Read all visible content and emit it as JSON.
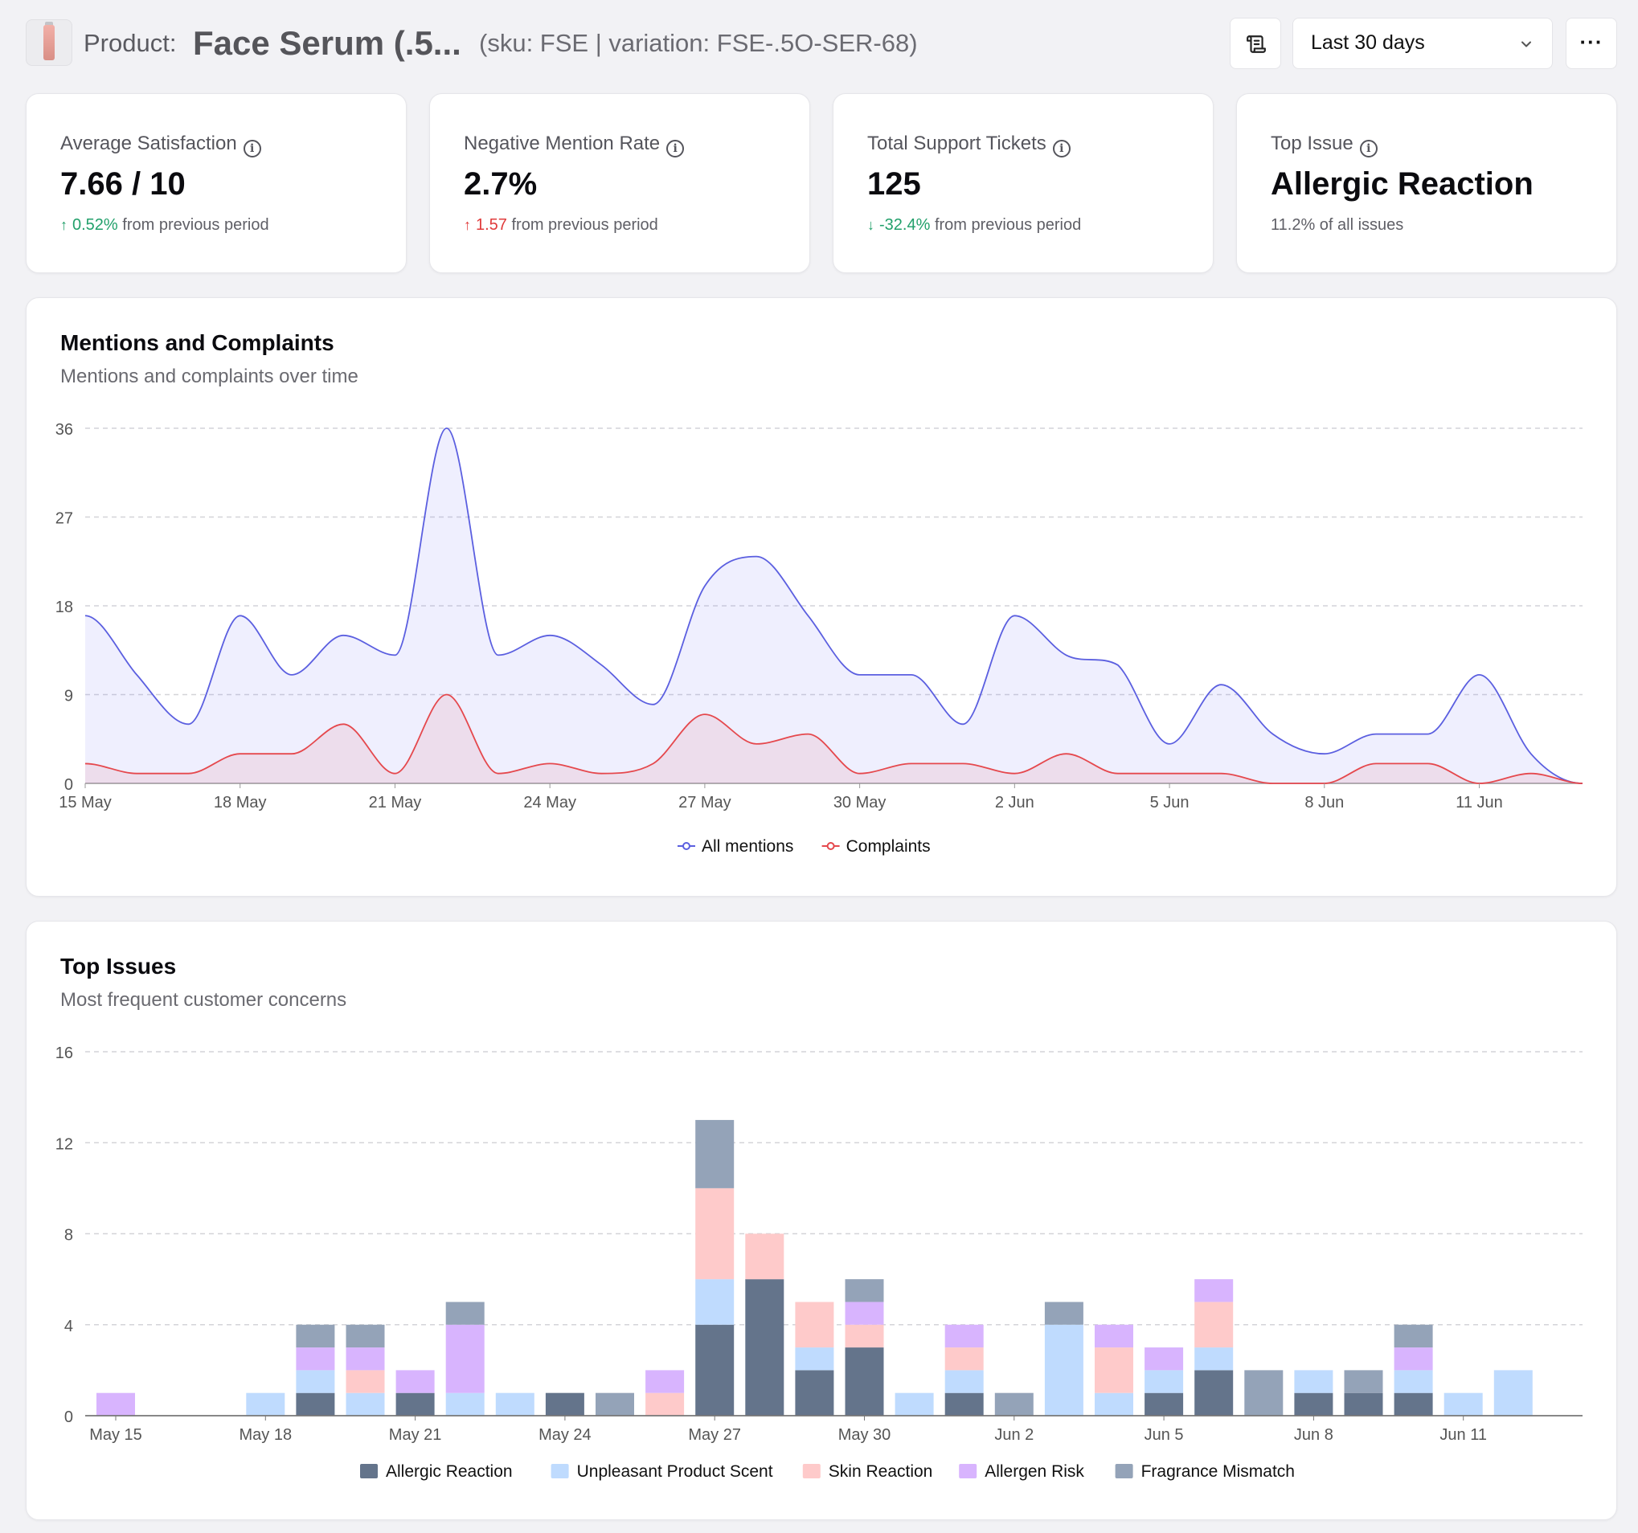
{
  "header": {
    "prefix": "Product:",
    "title": "Face Serum (.5...",
    "meta": "(sku: FSE | variation: FSE-.5O-SER-68)",
    "range_label": "Last 30 days",
    "more_label": "···"
  },
  "kpis": [
    {
      "label": "Average Satisfaction",
      "value": "7.66 / 10",
      "delta": "0.52%",
      "delta_dir": "up",
      "delta_tone": "good",
      "suffix": "from previous period"
    },
    {
      "label": "Negative Mention Rate",
      "value": "2.7%",
      "delta": "1.57",
      "delta_dir": "up",
      "delta_tone": "bad",
      "suffix": "from previous period"
    },
    {
      "label": "Total Support Tickets",
      "value": "125",
      "delta": "-32.4%",
      "delta_dir": "down",
      "delta_tone": "good",
      "suffix": "from previous period"
    },
    {
      "label": "Top Issue",
      "value": "Allergic Reaction",
      "note": "11.2% of all issues"
    }
  ],
  "mentions_panel": {
    "title": "Mentions and Complaints",
    "subtitle": "Mentions and complaints over time"
  },
  "issues_panel": {
    "title": "Top Issues",
    "subtitle": "Most frequent customer concerns"
  },
  "colors": {
    "mentions": "#5b5fe0",
    "complaints": "#e5484d",
    "allergic": "#64748b",
    "scent": "#bfdbfe",
    "skin": "#fecaca",
    "allergen": "#d8b4fe",
    "fragrance": "#94a3b8"
  },
  "chart_data": [
    {
      "type": "area",
      "title": "Mentions and Complaints",
      "x": [
        "15 May",
        "16 May",
        "17 May",
        "18 May",
        "19 May",
        "20 May",
        "21 May",
        "22 May",
        "23 May",
        "24 May",
        "25 May",
        "26 May",
        "27 May",
        "28 May",
        "29 May",
        "30 May",
        "31 May",
        "1 Jun",
        "2 Jun",
        "3 Jun",
        "4 Jun",
        "5 Jun",
        "6 Jun",
        "7 Jun",
        "8 Jun",
        "9 Jun",
        "10 Jun",
        "11 Jun",
        "12 Jun",
        "13 Jun"
      ],
      "tick_labels": [
        "15 May",
        "18 May",
        "21 May",
        "24 May",
        "27 May",
        "30 May",
        "2 Jun",
        "5 Jun",
        "8 Jun",
        "11 Jun"
      ],
      "tick_every": 3,
      "series": [
        {
          "name": "All mentions",
          "values": [
            17,
            11,
            6,
            17,
            11,
            15,
            13,
            36,
            13,
            15,
            12,
            8,
            20,
            23,
            17,
            11,
            11,
            6,
            17,
            13,
            12,
            4,
            10,
            5,
            3,
            5,
            5,
            11,
            3,
            0
          ]
        },
        {
          "name": "Complaints",
          "values": [
            2,
            1,
            1,
            3,
            3,
            6,
            1,
            9,
            1,
            2,
            1,
            2,
            7,
            4,
            5,
            1,
            2,
            2,
            1,
            3,
            1,
            1,
            1,
            0,
            0,
            2,
            2,
            0,
            1,
            0
          ]
        }
      ],
      "ylim": [
        0,
        36
      ],
      "yticks": [
        0,
        9,
        18,
        27,
        36
      ],
      "legend": "bottom-center"
    },
    {
      "type": "bar",
      "stacked": true,
      "title": "Top Issues",
      "categories": [
        "May 15",
        "May 16",
        "May 17",
        "May 18",
        "May 19",
        "May 20",
        "May 21",
        "May 22",
        "May 23",
        "May 24",
        "May 25",
        "May 26",
        "May 27",
        "May 28",
        "May 29",
        "May 30",
        "May 31",
        "Jun 1",
        "Jun 2",
        "Jun 3",
        "Jun 4",
        "Jun 5",
        "Jun 6",
        "Jun 7",
        "Jun 8",
        "Jun 9",
        "Jun 10",
        "Jun 11",
        "Jun 12"
      ],
      "tick_labels": [
        "May 15",
        "May 18",
        "May 21",
        "May 24",
        "May 27",
        "May 30",
        "Jun 2",
        "Jun 5",
        "Jun 8",
        "Jun 11"
      ],
      "tick_every": 3,
      "series": [
        {
          "name": "Allergic Reaction",
          "values": [
            0,
            0,
            0,
            0,
            1,
            0,
            1,
            0,
            0,
            1,
            0,
            0,
            4,
            6,
            2,
            3,
            0,
            1,
            0,
            0,
            0,
            1,
            2,
            0,
            1,
            1,
            1,
            0,
            0
          ]
        },
        {
          "name": "Unpleasant Product Scent",
          "values": [
            0,
            0,
            0,
            1,
            1,
            1,
            0,
            1,
            1,
            0,
            0,
            0,
            2,
            0,
            1,
            0,
            1,
            1,
            0,
            4,
            1,
            1,
            1,
            0,
            1,
            0,
            1,
            1,
            2
          ]
        },
        {
          "name": "Skin Reaction",
          "values": [
            0,
            0,
            0,
            0,
            0,
            1,
            0,
            0,
            0,
            0,
            0,
            1,
            4,
            2,
            2,
            1,
            0,
            1,
            0,
            0,
            2,
            0,
            2,
            0,
            0,
            0,
            0,
            0,
            0
          ]
        },
        {
          "name": "Allergen Risk",
          "values": [
            1,
            0,
            0,
            0,
            1,
            1,
            1,
            3,
            0,
            0,
            0,
            1,
            0,
            0,
            0,
            1,
            0,
            1,
            0,
            0,
            1,
            1,
            1,
            0,
            0,
            0,
            1,
            0,
            0
          ]
        },
        {
          "name": "Fragrance Mismatch",
          "values": [
            0,
            0,
            0,
            0,
            1,
            1,
            0,
            1,
            0,
            0,
            1,
            0,
            3,
            0,
            0,
            1,
            0,
            0,
            1,
            1,
            0,
            0,
            0,
            2,
            0,
            1,
            1,
            0,
            0
          ]
        }
      ],
      "ylim": [
        0,
        16
      ],
      "yticks": [
        0,
        4,
        8,
        12,
        16
      ],
      "legend": "bottom-center"
    }
  ]
}
